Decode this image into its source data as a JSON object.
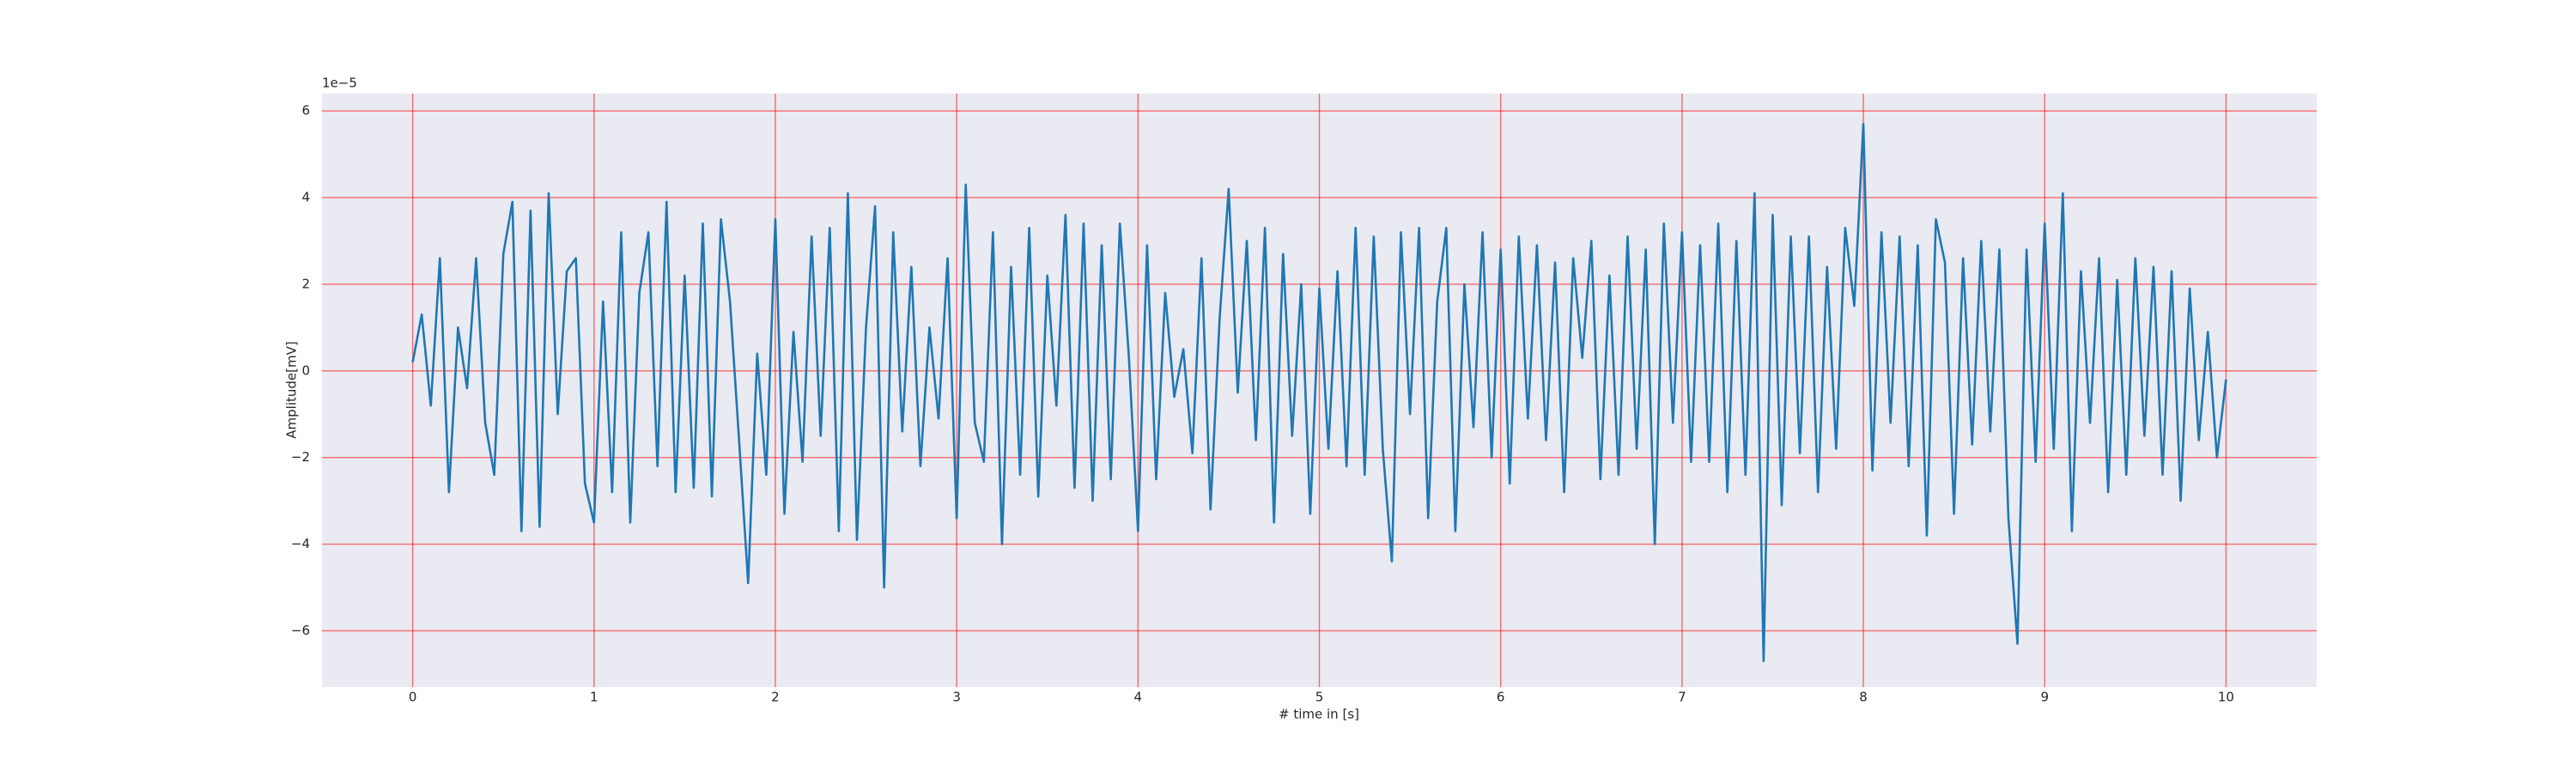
{
  "chart_data": {
    "type": "line",
    "xlabel": "# time in [s]",
    "ylabel": "Amplitude[mV]",
    "y_offset_text": "1e−5",
    "color": "#1f77b4",
    "grid": true,
    "grid_color": "#ff0000",
    "background": "#eaeaf2",
    "xlim": [
      -0.5,
      10.5
    ],
    "ylim": [
      -7.3,
      6.4
    ],
    "xticks": [
      0,
      1,
      2,
      3,
      4,
      5,
      6,
      7,
      8,
      9,
      10
    ],
    "yticks": [
      {
        "value": -6,
        "label": "−6"
      },
      {
        "value": -4,
        "label": "−4"
      },
      {
        "value": -2,
        "label": "−2"
      },
      0,
      2,
      4,
      6
    ],
    "x": [
      0,
      0.05,
      0.1,
      0.15,
      0.2,
      0.25,
      0.3,
      0.35,
      0.4,
      0.45,
      0.5,
      0.55,
      0.6,
      0.65,
      0.7,
      0.75,
      0.8,
      0.85,
      0.9,
      0.95,
      1,
      1.05,
      1.1,
      1.15,
      1.2,
      1.25,
      1.3,
      1.35,
      1.4,
      1.45,
      1.5,
      1.55,
      1.6,
      1.65,
      1.7,
      1.75,
      1.8,
      1.85,
      1.9,
      1.95,
      2,
      2.05,
      2.1,
      2.15,
      2.2,
      2.25,
      2.3,
      2.35,
      2.4,
      2.45,
      2.5,
      2.55,
      2.6,
      2.65,
      2.7,
      2.75,
      2.8,
      2.85,
      2.9,
      2.95,
      3,
      3.05,
      3.1,
      3.15,
      3.2,
      3.25,
      3.3,
      3.35,
      3.4,
      3.45,
      3.5,
      3.55,
      3.6,
      3.65,
      3.7,
      3.75,
      3.8,
      3.85,
      3.9,
      3.95,
      4,
      4.05,
      4.1,
      4.15,
      4.2,
      4.25,
      4.3,
      4.35,
      4.4,
      4.45,
      4.5,
      4.55,
      4.6,
      4.65,
      4.7,
      4.75,
      4.8,
      4.85,
      4.9,
      4.95,
      5,
      5.05,
      5.1,
      5.15,
      5.2,
      5.25,
      5.3,
      5.35,
      5.4,
      5.45,
      5.5,
      5.55,
      5.6,
      5.65,
      5.7,
      5.75,
      5.8,
      5.85,
      5.9,
      5.95,
      6,
      6.05,
      6.1,
      6.15,
      6.2,
      6.25,
      6.3,
      6.35,
      6.4,
      6.45,
      6.5,
      6.55,
      6.6,
      6.65,
      6.7,
      6.75,
      6.8,
      6.85,
      6.9,
      6.95,
      7,
      7.05,
      7.1,
      7.15,
      7.2,
      7.25,
      7.3,
      7.35,
      7.4,
      7.45,
      7.5,
      7.55,
      7.6,
      7.65,
      7.7,
      7.75,
      7.8,
      7.85,
      7.9,
      7.95,
      8,
      8.05,
      8.1,
      8.15,
      8.2,
      8.25,
      8.3,
      8.35,
      8.4,
      8.45,
      8.5,
      8.55,
      8.6,
      8.65,
      8.7,
      8.75,
      8.8,
      8.85,
      8.9,
      8.95,
      9,
      9.05,
      9.1,
      9.15,
      9.2,
      9.25,
      9.3,
      9.35,
      9.4,
      9.45,
      9.5,
      9.55,
      9.6,
      9.65,
      9.7,
      9.75,
      9.8,
      9.85,
      9.9,
      9.95,
      10
    ],
    "values": [
      0.2,
      1.3,
      -0.8,
      2.6,
      -2.8,
      1.0,
      -0.4,
      2.6,
      -1.2,
      -2.4,
      2.7,
      3.9,
      -3.7,
      3.7,
      -3.6,
      4.1,
      -1.0,
      2.3,
      2.6,
      -2.6,
      -3.5,
      1.6,
      -2.8,
      3.2,
      -3.5,
      1.8,
      3.2,
      -2.2,
      3.9,
      -2.8,
      2.2,
      -2.7,
      3.4,
      -2.9,
      3.5,
      1.6,
      -1.6,
      -4.9,
      0.4,
      -2.4,
      3.5,
      -3.3,
      0.9,
      -2.1,
      3.1,
      -1.5,
      3.3,
      -3.7,
      4.1,
      -3.9,
      1.0,
      3.8,
      -5.0,
      3.2,
      -1.4,
      2.4,
      -2.2,
      1.0,
      -1.1,
      2.6,
      -3.4,
      4.3,
      -1.2,
      -2.1,
      3.2,
      -4.0,
      2.4,
      -2.4,
      3.3,
      -2.9,
      2.2,
      -0.8,
      3.6,
      -2.7,
      3.4,
      -3.0,
      2.9,
      -2.5,
      3.4,
      0.3,
      -3.7,
      2.9,
      -2.5,
      1.8,
      -0.6,
      0.5,
      -1.9,
      2.6,
      -3.2,
      1.2,
      4.2,
      -0.5,
      3.0,
      -1.6,
      3.3,
      -3.5,
      2.7,
      -1.5,
      2.0,
      -3.3,
      1.9,
      -1.8,
      2.3,
      -2.2,
      3.3,
      -2.4,
      3.1,
      -1.8,
      -4.4,
      3.2,
      -1.0,
      3.3,
      -3.4,
      1.6,
      3.3,
      -3.7,
      2.0,
      -1.3,
      3.2,
      -2.0,
      2.8,
      -2.6,
      3.1,
      -1.1,
      2.9,
      -1.6,
      2.5,
      -2.8,
      2.6,
      0.3,
      3.0,
      -2.5,
      2.2,
      -2.4,
      3.1,
      -1.8,
      2.8,
      -4.0,
      3.4,
      -1.2,
      3.2,
      -2.1,
      2.9,
      -2.1,
      3.4,
      -2.8,
      3.0,
      -2.4,
      4.1,
      -6.7,
      3.6,
      -3.1,
      3.1,
      -1.9,
      3.1,
      -2.8,
      2.4,
      -1.8,
      3.3,
      1.5,
      5.7,
      -2.3,
      3.2,
      -1.2,
      3.1,
      -2.2,
      2.9,
      -3.8,
      3.5,
      2.5,
      -3.3,
      2.6,
      -1.7,
      3.0,
      -1.4,
      2.8,
      -3.4,
      -6.3,
      2.8,
      -2.1,
      3.4,
      -1.8,
      4.1,
      -3.7,
      2.3,
      -1.2,
      2.6,
      -2.8,
      2.1,
      -2.4,
      2.6,
      -1.5,
      2.4,
      -2.4,
      2.3,
      -3.0,
      1.9,
      -1.6,
      0.9,
      -2.0,
      -0.2
    ]
  }
}
